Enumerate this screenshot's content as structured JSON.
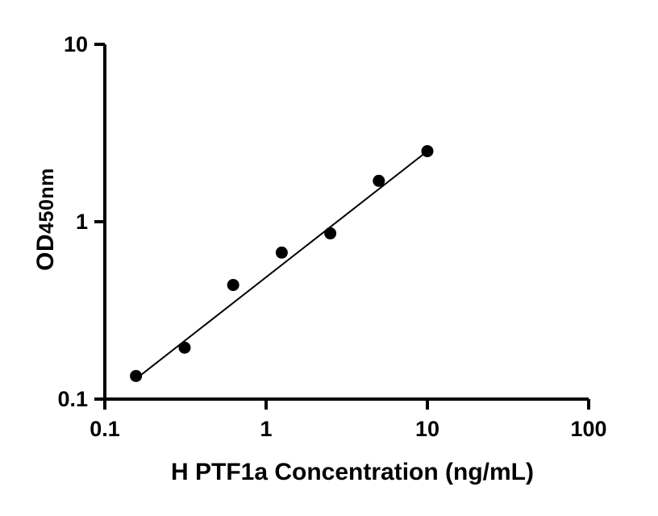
{
  "page": {
    "background": "#ffffff",
    "foreground": "#000000"
  },
  "chart_data": {
    "type": "scatter",
    "title": "",
    "xlabel": "H PTF1a Concentration (ng/mL)",
    "ylabel": "OD450nm",
    "ylabel_prefix": "OD",
    "ylabel_sub": "450nm",
    "x_scale": "log",
    "y_scale": "log",
    "xlim": [
      0.1,
      100
    ],
    "ylim": [
      0.1,
      10
    ],
    "x_ticks": {
      "values": [
        0.1,
        1,
        10,
        100
      ],
      "labels": [
        "0.1",
        "1",
        "10",
        "100"
      ]
    },
    "y_ticks": {
      "values": [
        0.1,
        1,
        10
      ],
      "labels": [
        "0.1",
        "1",
        "10"
      ]
    },
    "grid": false,
    "legend": "none",
    "marker_color": "#000000",
    "line_color": "#000000",
    "series": [
      {
        "name": "standard-curve-points",
        "marker": "filled-circle",
        "color": "#000000",
        "x": [
          0.156,
          0.3125,
          0.625,
          1.25,
          2.5,
          5,
          10
        ],
        "y": [
          0.135,
          0.195,
          0.44,
          0.67,
          0.86,
          1.7,
          2.5
        ]
      }
    ],
    "fit_line": {
      "x": [
        0.156,
        10
      ],
      "y": [
        0.13,
        2.5
      ],
      "color": "#000000"
    }
  }
}
